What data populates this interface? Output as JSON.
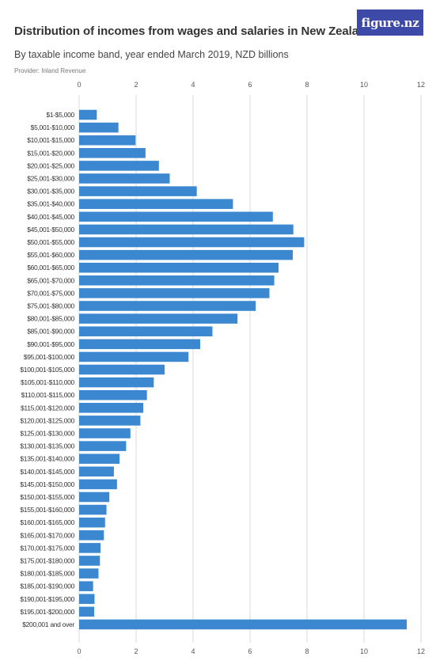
{
  "header": {
    "title": "Distribution of incomes from wages and salaries in New Zealand",
    "subtitle": "By taxable income band, year ended March 2019, NZD billions",
    "provider": "Provider: Inland Revenue",
    "logo": "figure.nz"
  },
  "colors": {
    "bar": "#3b88d1",
    "grid": "#d9d9d9",
    "logo_bg": "#3d4aa8"
  },
  "chart_data": {
    "type": "bar",
    "orientation": "horizontal",
    "title": "Distribution of incomes from wages and salaries in New Zealand",
    "subtitle": "By taxable income band, year ended March 2019, NZD billions",
    "xlim": [
      0,
      12
    ],
    "xticks": [
      0,
      2,
      4,
      6,
      8,
      10,
      12
    ],
    "grid": true,
    "categories": [
      "$1-$5,000",
      "$5,001-$10,000",
      "$10,001-$15,000",
      "$15,001-$20,000",
      "$20,001-$25,000",
      "$25,001-$30,000",
      "$30,001-$35,000",
      "$35,001-$40,000",
      "$40,001-$45,000",
      "$45,001-$50,000",
      "$50,001-$55,000",
      "$55,001-$60,000",
      "$60,001-$65,000",
      "$65,001-$70,000",
      "$70,001-$75,000",
      "$75,001-$80,000",
      "$80,001-$85,000",
      "$85,001-$90,000",
      "$90,001-$95,000",
      "$95,001-$100,000",
      "$100,001-$105,000",
      "$105,001-$110,000",
      "$110,001-$115,000",
      "$115,001-$120,000",
      "$120,001-$125,000",
      "$125,001-$130,000",
      "$130,001-$135,000",
      "$135,001-$140,000",
      "$140,001-$145,000",
      "$145,001-$150,000",
      "$150,001-$155,000",
      "$155,001-$160,000",
      "$160,001-$165,000",
      "$165,001-$170,000",
      "$170,001-$175,000",
      "$175,001-$180,000",
      "$180,001-$185,000",
      "$185,001-$190,000",
      "$190,001-$195,000",
      "$195,001-$200,000",
      "$200,001 and over"
    ],
    "values": [
      0.62,
      1.38,
      1.98,
      2.33,
      2.8,
      3.18,
      4.13,
      5.4,
      6.8,
      7.52,
      7.9,
      7.5,
      7.0,
      6.85,
      6.68,
      6.2,
      5.56,
      4.68,
      4.25,
      3.84,
      3.0,
      2.62,
      2.38,
      2.25,
      2.15,
      1.8,
      1.65,
      1.42,
      1.22,
      1.33,
      1.06,
      0.96,
      0.91,
      0.87,
      0.75,
      0.73,
      0.68,
      0.49,
      0.54,
      0.53,
      11.5
    ]
  }
}
